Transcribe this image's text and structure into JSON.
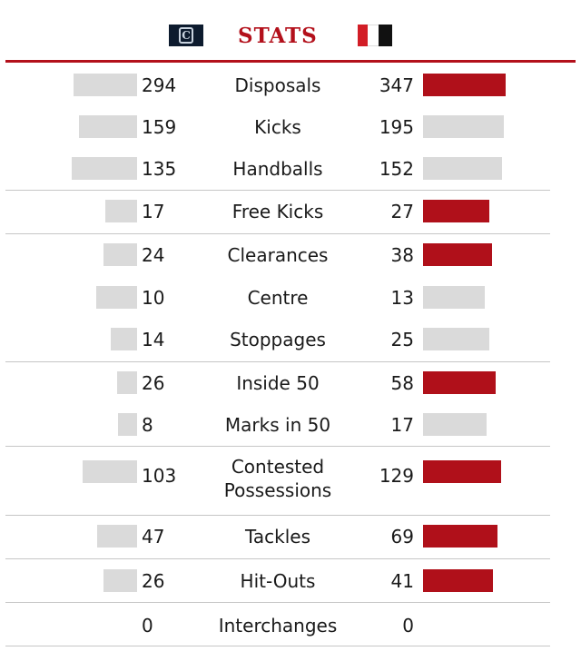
{
  "header": {
    "title": "STATS",
    "left_team_logo": "carlton-logo",
    "right_team_logo": "essendon-logo"
  },
  "colors": {
    "accent": "#b3101b",
    "left_team_bar": "#6d6d6d",
    "right_team_bar": "#b0101a",
    "lower_value_bar": "#dadada"
  },
  "stats": [
    {
      "label": "Disposals",
      "left": "294",
      "right": "347"
    },
    {
      "label": "Kicks",
      "left": "159",
      "right": "195"
    },
    {
      "label": "Handballs",
      "left": "135",
      "right": "152"
    },
    {
      "label": "Free Kicks",
      "left": "17",
      "right": "27"
    },
    {
      "label": "Clearances",
      "left": "24",
      "right": "38"
    },
    {
      "label": "Centre",
      "left": "10",
      "right": "13"
    },
    {
      "label": "Stoppages",
      "left": "14",
      "right": "25"
    },
    {
      "label": "Inside 50",
      "left": "26",
      "right": "58"
    },
    {
      "label": "Marks in 50",
      "left": "8",
      "right": "17"
    },
    {
      "label": "Contested Possessions",
      "left": "103",
      "right": "129"
    },
    {
      "label": "Tackles",
      "left": "47",
      "right": "69"
    },
    {
      "label": "Hit-Outs",
      "left": "26",
      "right": "41"
    },
    {
      "label": "Interchanges",
      "left": "0",
      "right": "0"
    }
  ]
}
